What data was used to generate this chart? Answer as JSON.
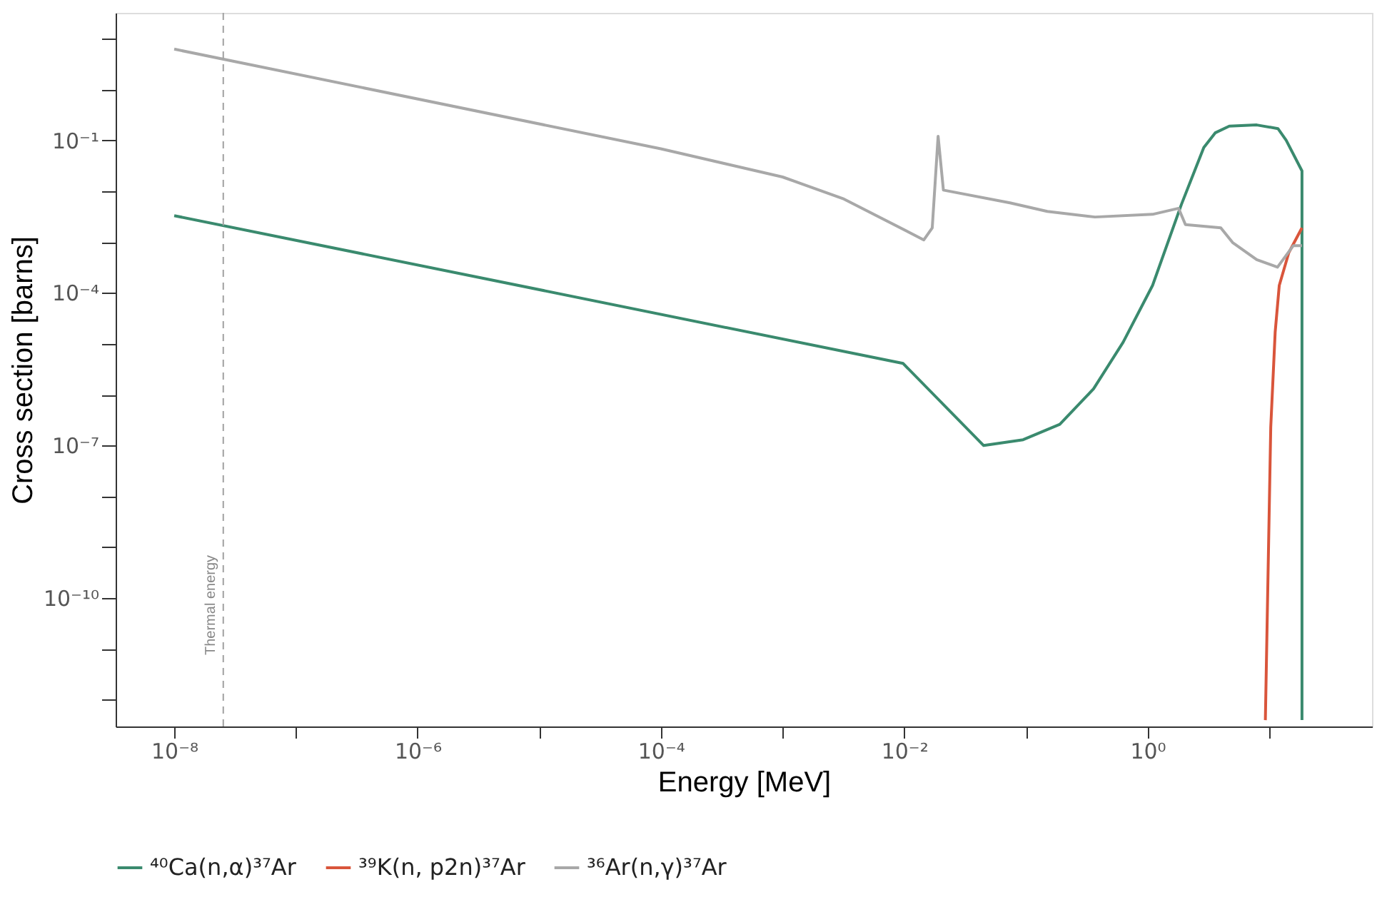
{
  "chart_data": {
    "type": "line",
    "xlabel": "Energy [MeV]",
    "ylabel": "Cross section [barns]",
    "log": "xy",
    "grid": false,
    "legend": "bottom",
    "line_style": "solid",
    "marker": "none",
    "xlim": [
      3.3e-09,
      70
    ],
    "ylim": [
      3e-13,
      32
    ],
    "xticks": [
      {
        "value": 1e-08,
        "label": "10⁻⁸"
      },
      {
        "value": 1e-07,
        "label": null
      },
      {
        "value": 1e-06,
        "label": "10⁻⁶"
      },
      {
        "value": 1e-05,
        "label": null
      },
      {
        "value": 0.0001,
        "label": "10⁻⁴"
      },
      {
        "value": 0.001,
        "label": null
      },
      {
        "value": 0.01,
        "label": "10⁻²"
      },
      {
        "value": 0.1,
        "label": null
      },
      {
        "value": 1,
        "label": "10⁰"
      },
      {
        "value": 10,
        "label": null
      }
    ],
    "yticks": [
      {
        "value": 1e-12,
        "label": null
      },
      {
        "value": 1e-11,
        "label": null
      },
      {
        "value": 1e-10,
        "label": "10⁻¹⁰"
      },
      {
        "value": 1e-09,
        "label": null
      },
      {
        "value": 1e-08,
        "label": null
      },
      {
        "value": 1e-07,
        "label": "10⁻⁷"
      },
      {
        "value": 1e-06,
        "label": null
      },
      {
        "value": 1e-05,
        "label": null
      },
      {
        "value": 0.0001,
        "label": "10⁻⁴"
      },
      {
        "value": 0.001,
        "label": null
      },
      {
        "value": 0.01,
        "label": null
      },
      {
        "value": 0.1,
        "label": "10⁻¹"
      },
      {
        "value": 1,
        "label": null
      },
      {
        "value": 10,
        "label": null
      }
    ],
    "ref_lines": [
      {
        "axis": "x",
        "value": 2.53e-08,
        "label": "Thermal energy",
        "color": "#a0a0a0",
        "line_style": "dashed"
      }
    ],
    "series": [
      {
        "name": "⁴⁰Ca(n,α)³⁷Ar",
        "color": "#3a8a6e",
        "x": [
          1e-08,
          0.0098,
          0.045,
          0.095,
          0.19,
          0.36,
          0.63,
          1.1,
          1.9,
          2.9,
          3.6,
          4.7,
          7.9,
          11.8,
          13.8,
          18.6,
          18.6
        ],
        "values": [
          0.0033,
          4.1e-06,
          1e-07,
          1.3e-07,
          2.6e-07,
          1.3e-06,
          1.07e-05,
          0.00014,
          0.0055,
          0.072,
          0.14,
          0.19,
          0.2,
          0.17,
          0.1,
          0.025,
          4e-13
        ]
      },
      {
        "name": "³⁹K(n, p2n)³⁷Ar",
        "color": "#d9553b",
        "x": [
          9.3,
          9.8,
          10.3,
          11.2,
          12.1,
          14.5,
          18.6
        ],
        "values": [
          4e-13,
          3.6e-10,
          2.3e-07,
          1.7e-05,
          0.00014,
          0.00062,
          0.0019
        ]
      },
      {
        "name": "³⁶Ar(n,γ)³⁷Ar",
        "color": "#a8a8a8",
        "x": [
          1e-08,
          0.0001,
          0.00035,
          0.001,
          0.0032,
          0.0145,
          0.017,
          0.019,
          0.021,
          0.074,
          0.15,
          0.37,
          1.1,
          1.8,
          2.05,
          4,
          5,
          7.9,
          11.7,
          15.8,
          18.6
        ],
        "values": [
          6.2,
          0.068,
          0.034,
          0.019,
          0.007,
          0.0011,
          0.0019,
          0.12,
          0.0105,
          0.0059,
          0.004,
          0.0031,
          0.0035,
          0.0046,
          0.0022,
          0.0019,
          0.00098,
          0.00045,
          0.00032,
          0.00085,
          0.00085
        ]
      }
    ]
  }
}
